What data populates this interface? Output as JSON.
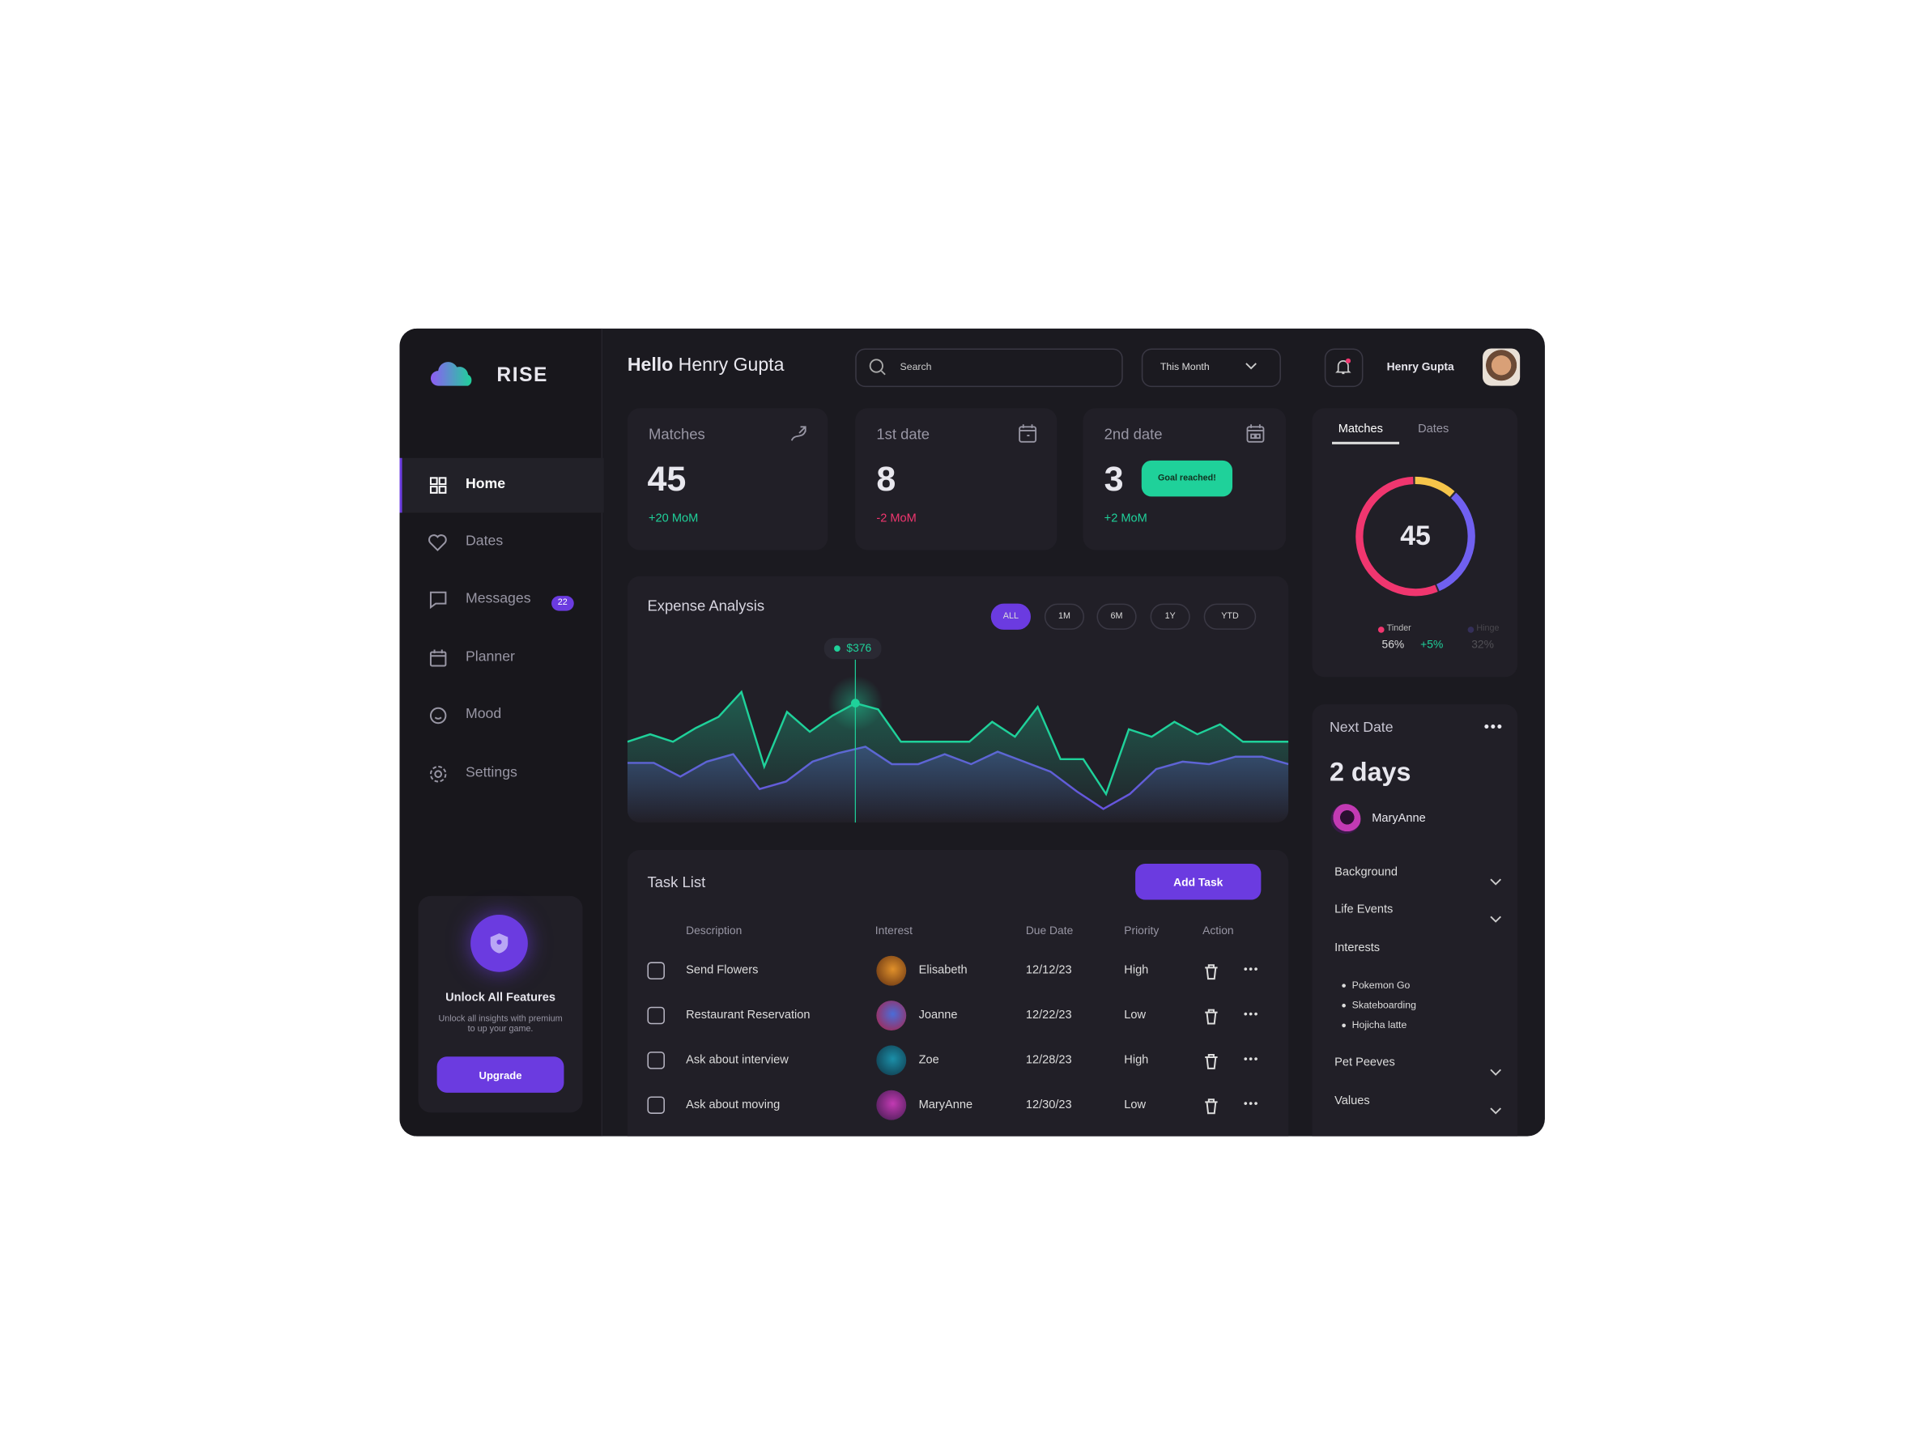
{
  "brand": "RISE",
  "nav": [
    {
      "label": "Home"
    },
    {
      "label": "Dates"
    },
    {
      "label": "Messages",
      "badge": "22"
    },
    {
      "label": "Planner"
    },
    {
      "label": "Mood"
    },
    {
      "label": "Settings"
    }
  ],
  "promo": {
    "title": "Unlock All Features",
    "text": "Unlock all insights with premium to up your game.",
    "button": "Upgrade"
  },
  "header": {
    "greeting": "Hello",
    "name": "Henry Gupta",
    "search": "Search",
    "period": "This Month",
    "user": "Henry Gupta"
  },
  "stats": [
    {
      "label": "Matches",
      "value": "45",
      "change": "+20 MoM"
    },
    {
      "label": "1st date",
      "value": "8",
      "change": "-2 MoM"
    },
    {
      "label": "2nd date",
      "value": "3",
      "badge": "Goal reached!",
      "change": "+2 MoM"
    }
  ],
  "expense": {
    "title": "Expense Analysis",
    "ranges": [
      "ALL",
      "1M",
      "6M",
      "1Y",
      "YTD"
    ],
    "tooltip": "$376",
    "series": [
      {
        "color": "#1fd19a",
        "values": [
          64,
          70,
          64,
          75,
          84,
          104,
          44,
          88,
          72,
          85,
          95,
          90,
          64,
          64,
          64,
          64,
          80,
          68,
          92,
          50,
          50,
          22,
          74,
          68,
          80,
          70,
          78,
          64,
          64,
          64
        ]
      },
      {
        "color": "#6a4fe0",
        "values": [
          47,
          47,
          36,
          48,
          54,
          26,
          32,
          48,
          55,
          60,
          46,
          46,
          54,
          46,
          56,
          48,
          40,
          24,
          10,
          22,
          42,
          48,
          46,
          52,
          52,
          46
        ]
      }
    ]
  },
  "tasks": {
    "title": "Task List",
    "button": "Add Task",
    "columns": [
      "Description",
      "Interest",
      "Due Date",
      "Priority",
      "Action"
    ],
    "rows": [
      [
        "Send Flowers",
        "Elisabeth",
        "12/12/23",
        "High"
      ],
      [
        "Restaurant Reservation",
        "Joanne",
        "12/22/23",
        "Low"
      ],
      [
        "Ask about interview",
        "Zoe",
        "12/28/23",
        "High"
      ],
      [
        "Ask about moving",
        "MaryAnne",
        "12/30/23",
        "Low"
      ]
    ]
  },
  "donut": {
    "tabs": [
      "Matches",
      "Dates"
    ],
    "center": "45",
    "segments": [
      {
        "name": "Tinder",
        "value": 56,
        "value_label": "56%",
        "change": "+5%",
        "color": "#f0366f"
      },
      {
        "name": null,
        "value": 12,
        "color": "#f6c54a"
      },
      {
        "name": "Hinge",
        "value": 32,
        "value_label": "32%",
        "color": "#7060f0"
      }
    ]
  },
  "next": {
    "title": "Next Date",
    "when": "2 days",
    "person": "MaryAnne",
    "sections": [
      "Background",
      "Life Events",
      "Interests",
      "Pet Peeves",
      "Values"
    ],
    "interests": [
      "Pokemon Go",
      "Skateboarding",
      "Hojicha latte"
    ]
  }
}
